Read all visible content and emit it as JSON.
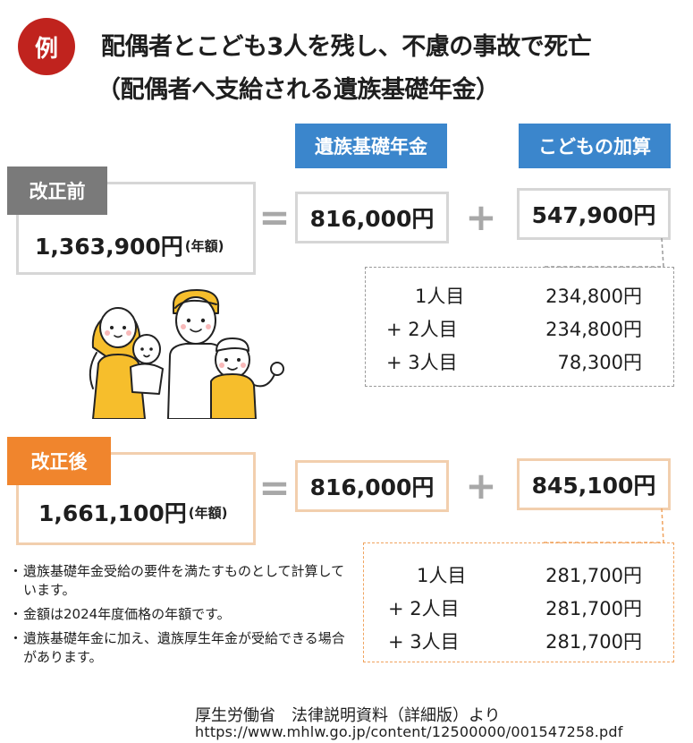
{
  "header": {
    "badge": "例",
    "title_line1": "配偶者とこども3人を残し、不慮の事故で死亡",
    "title_line2": "（配偶者へ支給される遺族基礎年金）"
  },
  "columns": {
    "basic_pension": "遺族基礎年金",
    "child_addition": "こどもの加算"
  },
  "operators": {
    "equals": "=",
    "plus": "+"
  },
  "before": {
    "tab_label": "改正前",
    "tab_color": "#7a7a7a",
    "total": "1,363,900円",
    "total_note": "(年額)",
    "basic": "816,000円",
    "addition": "547,900円",
    "children": [
      {
        "label": "1人目",
        "value": "234,800円"
      },
      {
        "label": "+ 2人目",
        "value": "234,800円"
      },
      {
        "label": "+ 3人目",
        "value": "78,300円"
      }
    ]
  },
  "after": {
    "tab_label": "改正後",
    "tab_color": "#f0852d",
    "total": "1,661,100円",
    "total_note": "(年額)",
    "basic": "816,000円",
    "addition": "845,100円",
    "children": [
      {
        "label": "1人目",
        "value": "281,700円"
      },
      {
        "label": "+ 2人目",
        "value": "281,700円"
      },
      {
        "label": "+ 3人目",
        "value": "281,700円"
      }
    ]
  },
  "notes": [
    "遺族基礎年金受給の要件を満たすものとして計算しています。",
    "金額は2024年度価格の年額です。",
    "遺族基礎年金に加え、遺族厚生年金が受給できる場合があります。"
  ],
  "source": {
    "text": "厚生労働省　法律説明資料（詳細版）より",
    "url": "https://www.mhlw.go.jp/content/12500000/001547258.pdf"
  },
  "colors": {
    "accent_red": "#c0231e",
    "column_blue": "#3b86cc",
    "before_border": "#d6d6d6",
    "after_border": "#f2cfae",
    "family_yellow": "#f6be2c"
  }
}
